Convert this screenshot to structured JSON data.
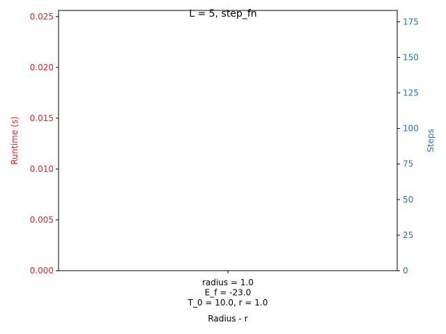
{
  "chart_data": {
    "type": "bar",
    "title": "L = 5, step_fn",
    "xlabel": "Radius - r",
    "categories": [
      [
        "radius = 1.0",
        "E_f = -23.0",
        "T_0 = 10.0, r = 1.0"
      ]
    ],
    "left_axis": {
      "label": "Runtime (s)",
      "color": "#d62728",
      "ylim": [
        0,
        0.0256
      ],
      "ticks": [
        "0.000",
        "0.005",
        "0.010",
        "0.015",
        "0.020",
        "0.025"
      ],
      "tick_values": [
        0,
        0.005,
        0.01,
        0.015,
        0.02,
        0.025
      ]
    },
    "right_axis": {
      "label": "Steps",
      "color": "#1f77b4",
      "ylim": [
        0,
        183
      ],
      "ticks": [
        "0",
        "25",
        "50",
        "75",
        "100",
        "125",
        "150",
        "175"
      ],
      "tick_values": [
        0,
        25,
        50,
        75,
        100,
        125,
        150,
        175
      ]
    },
    "series": [],
    "grid": false
  }
}
